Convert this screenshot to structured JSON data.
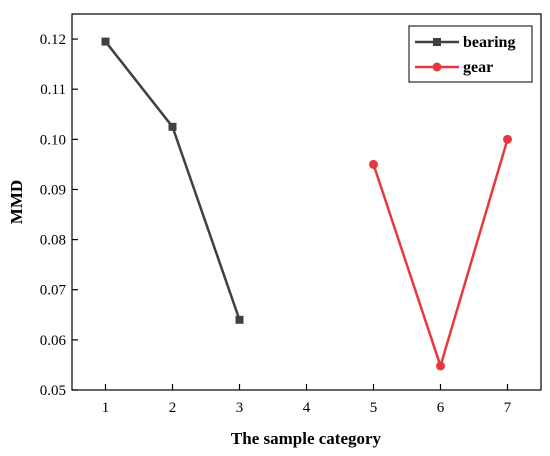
{
  "chart_data": {
    "type": "line",
    "title": "",
    "xlabel": "The sample category",
    "ylabel": "MMD",
    "xlim": [
      0.5,
      7.5
    ],
    "ylim": [
      0.05,
      0.125
    ],
    "x_ticks": [
      "1",
      "2",
      "3",
      "4",
      "5",
      "6",
      "7"
    ],
    "y_ticks": [
      "0.05",
      "0.06",
      "0.07",
      "0.08",
      "0.09",
      "0.10",
      "0.11",
      "0.12"
    ],
    "grid": false,
    "legend_position": "top-right",
    "series": [
      {
        "name": "bearing",
        "color": "#404040",
        "marker": "square",
        "x": [
          1,
          2,
          3
        ],
        "y": [
          0.1195,
          0.1025,
          0.064
        ]
      },
      {
        "name": "gear",
        "color": "#e8383d",
        "marker": "circle",
        "x": [
          5,
          6,
          7
        ],
        "y": [
          0.095,
          0.0548,
          0.1
        ]
      }
    ]
  }
}
